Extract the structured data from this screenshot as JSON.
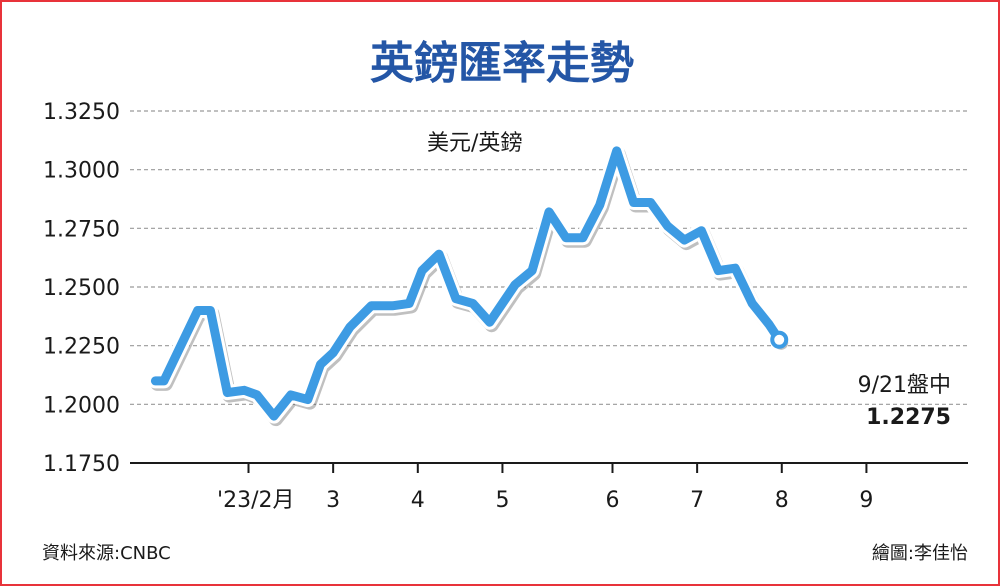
{
  "colors": {
    "border": "#e8333a",
    "title": "#2456a6",
    "line": "#3d9be3",
    "grid": "#9a9a9a"
  },
  "chart_data": {
    "type": "line",
    "title": "英鎊匯率走勢",
    "unit_label": "美元/英鎊",
    "ylim": [
      1.175,
      1.325
    ],
    "y_ticks": [
      "1.3250",
      "1.3000",
      "1.2750",
      "1.2500",
      "1.2250",
      "1.2000",
      "1.1750"
    ],
    "y_tick_values": [
      1.325,
      1.3,
      1.275,
      1.25,
      1.225,
      1.2,
      1.175
    ],
    "x_tick_labels": [
      "'23/2月",
      "3",
      "4",
      "5",
      "6",
      "7",
      "8",
      "9"
    ],
    "x_tick_positions": [
      1,
      2,
      3,
      4,
      5.3,
      6.3,
      7.3,
      8.3
    ],
    "xlim": [
      -0.4,
      9.5
    ],
    "grid": true,
    "series": [
      {
        "values": [
          [
            -0.1,
            1.21
          ],
          [
            0.0,
            1.21
          ],
          [
            0.2,
            1.225
          ],
          [
            0.4,
            1.24
          ],
          [
            0.55,
            1.24
          ],
          [
            0.75,
            1.205
          ],
          [
            0.95,
            1.206
          ],
          [
            1.1,
            1.204
          ],
          [
            1.3,
            1.195
          ],
          [
            1.5,
            1.204
          ],
          [
            1.7,
            1.202
          ],
          [
            1.85,
            1.217
          ],
          [
            2.0,
            1.222
          ],
          [
            2.2,
            1.233
          ],
          [
            2.45,
            1.242
          ],
          [
            2.7,
            1.242
          ],
          [
            2.9,
            1.243
          ],
          [
            3.05,
            1.257
          ],
          [
            3.25,
            1.264
          ],
          [
            3.45,
            1.245
          ],
          [
            3.65,
            1.243
          ],
          [
            3.85,
            1.235
          ],
          [
            4.15,
            1.251
          ],
          [
            4.35,
            1.257
          ],
          [
            4.55,
            1.282
          ],
          [
            4.75,
            1.271
          ],
          [
            4.95,
            1.271
          ],
          [
            5.15,
            1.285
          ],
          [
            5.35,
            1.308
          ],
          [
            5.55,
            1.286
          ],
          [
            5.75,
            1.286
          ],
          [
            5.95,
            1.276
          ],
          [
            6.15,
            1.27
          ],
          [
            6.35,
            1.274
          ],
          [
            6.55,
            1.257
          ],
          [
            6.75,
            1.258
          ],
          [
            6.95,
            1.243
          ],
          [
            7.15,
            1.234
          ],
          [
            7.27,
            1.2275
          ]
        ]
      }
    ],
    "annotation": {
      "date": "9/21盤中",
      "value": "1.2275"
    }
  },
  "footer": {
    "source": "資料來源:CNBC",
    "credit": "繪圖:李佳怡"
  }
}
